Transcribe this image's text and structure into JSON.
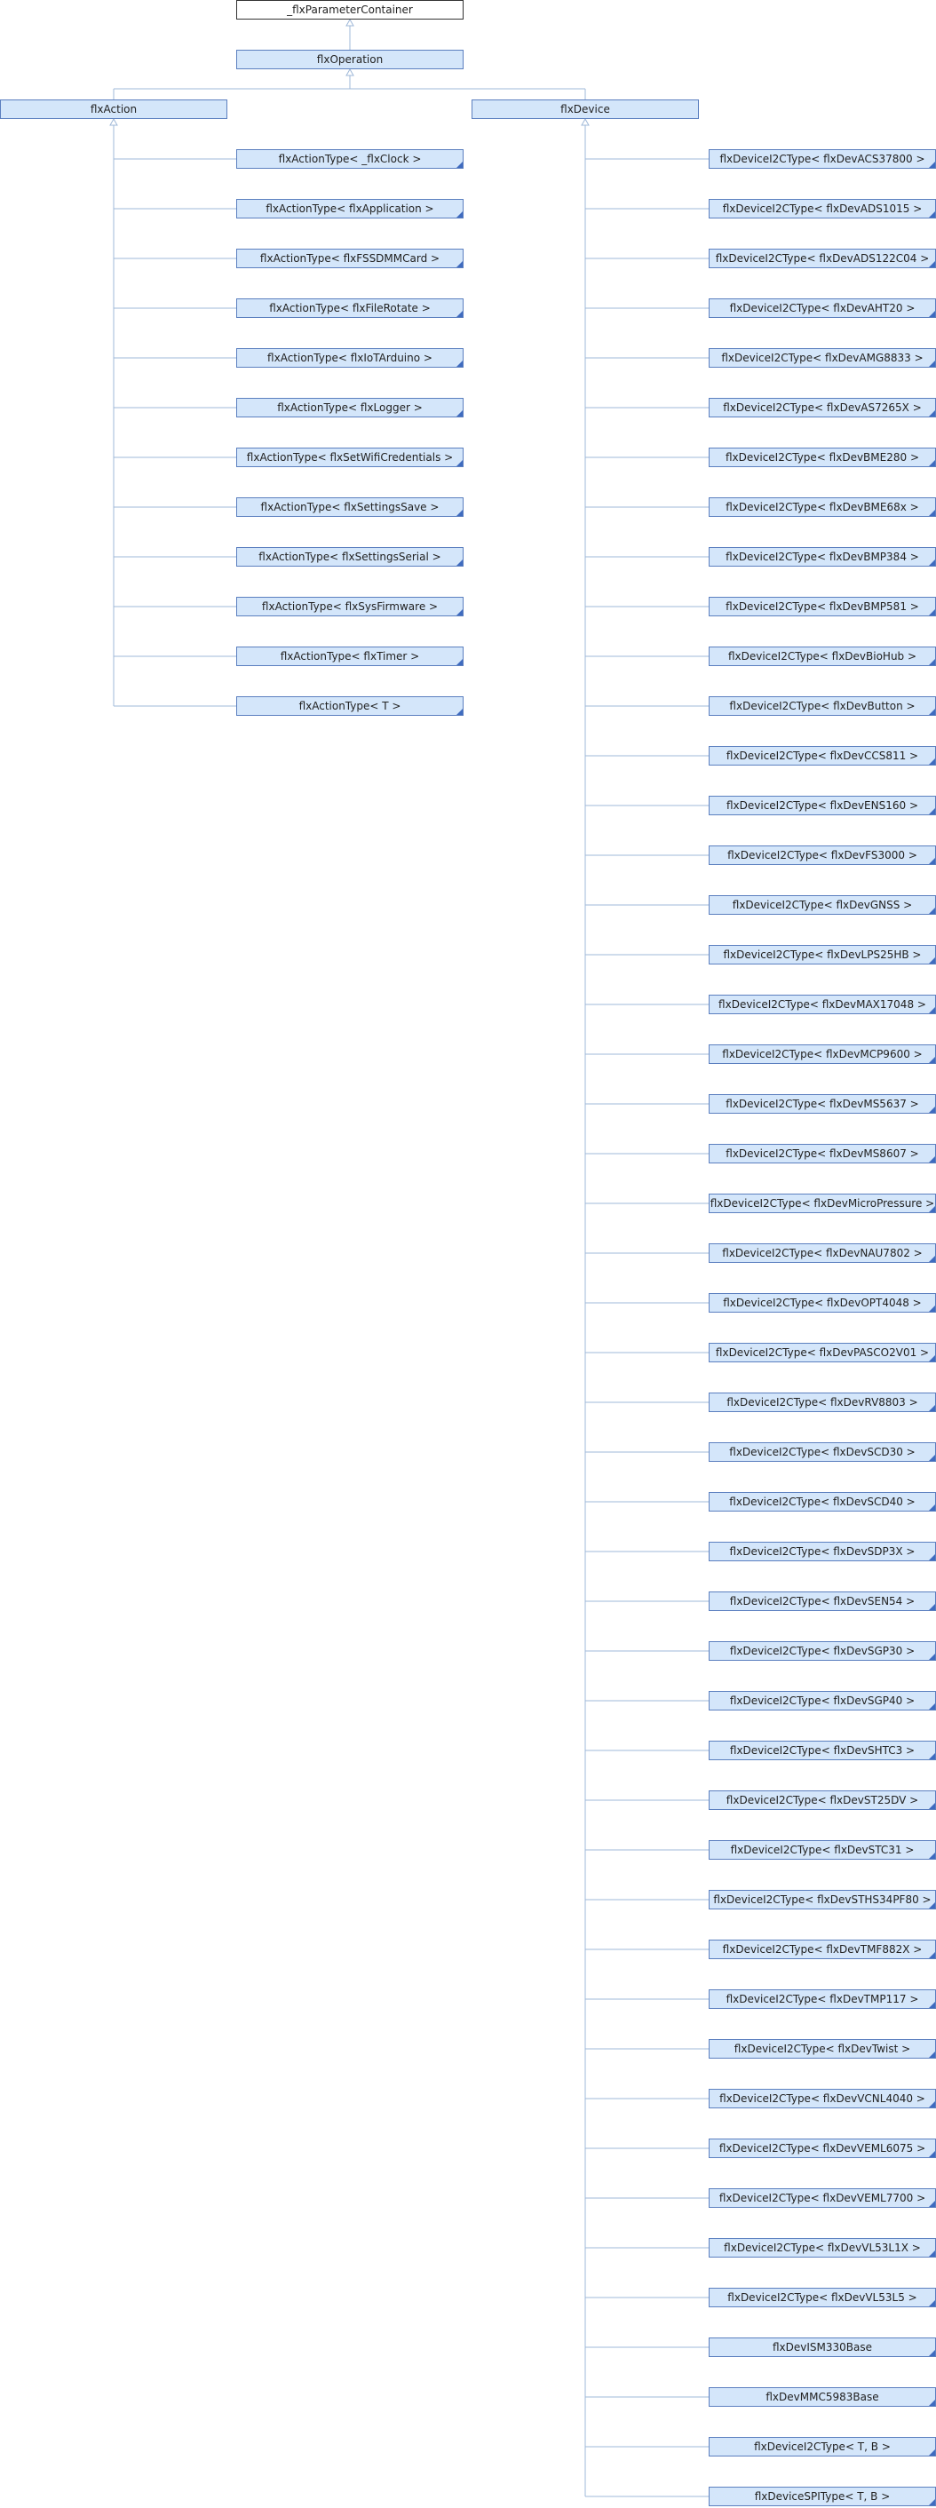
{
  "root": {
    "label": "_flxParameterContainer"
  },
  "operation": {
    "label": "flxOperation"
  },
  "action": {
    "label": "flxAction",
    "children": [
      "flxActionType< _flxClock >",
      "flxActionType< flxApplication >",
      "flxActionType< flxFSSDMMCard >",
      "flxActionType< flxFileRotate >",
      "flxActionType< flxIoTArduino >",
      "flxActionType< flxLogger >",
      "flxActionType< flxSetWifiCredentials >",
      "flxActionType< flxSettingsSave >",
      "flxActionType< flxSettingsSerial >",
      "flxActionType< flxSysFirmware >",
      "flxActionType< flxTimer >",
      "flxActionType< T >"
    ]
  },
  "device": {
    "label": "flxDevice",
    "children": [
      "flxDeviceI2CType< flxDevACS37800 >",
      "flxDeviceI2CType< flxDevADS1015 >",
      "flxDeviceI2CType< flxDevADS122C04 >",
      "flxDeviceI2CType< flxDevAHT20 >",
      "flxDeviceI2CType< flxDevAMG8833 >",
      "flxDeviceI2CType< flxDevAS7265X >",
      "flxDeviceI2CType< flxDevBME280 >",
      "flxDeviceI2CType< flxDevBME68x >",
      "flxDeviceI2CType< flxDevBMP384 >",
      "flxDeviceI2CType< flxDevBMP581 >",
      "flxDeviceI2CType< flxDevBioHub >",
      "flxDeviceI2CType< flxDevButton >",
      "flxDeviceI2CType< flxDevCCS811 >",
      "flxDeviceI2CType< flxDevENS160 >",
      "flxDeviceI2CType< flxDevFS3000 >",
      "flxDeviceI2CType< flxDevGNSS >",
      "flxDeviceI2CType< flxDevLPS25HB >",
      "flxDeviceI2CType< flxDevMAX17048 >",
      "flxDeviceI2CType< flxDevMCP9600 >",
      "flxDeviceI2CType< flxDevMS5637 >",
      "flxDeviceI2CType< flxDevMS8607 >",
      "flxDeviceI2CType< flxDevMicroPressure >",
      "flxDeviceI2CType< flxDevNAU7802 >",
      "flxDeviceI2CType< flxDevOPT4048 >",
      "flxDeviceI2CType< flxDevPASCO2V01 >",
      "flxDeviceI2CType< flxDevRV8803 >",
      "flxDeviceI2CType< flxDevSCD30 >",
      "flxDeviceI2CType< flxDevSCD40 >",
      "flxDeviceI2CType< flxDevSDP3X >",
      "flxDeviceI2CType< flxDevSEN54 >",
      "flxDeviceI2CType< flxDevSGP30 >",
      "flxDeviceI2CType< flxDevSGP40 >",
      "flxDeviceI2CType< flxDevSHTC3 >",
      "flxDeviceI2CType< flxDevST25DV >",
      "flxDeviceI2CType< flxDevSTC31 >",
      "flxDeviceI2CType< flxDevSTHS34PF80 >",
      "flxDeviceI2CType< flxDevTMF882X >",
      "flxDeviceI2CType< flxDevTMP117 >",
      "flxDeviceI2CType< flxDevTwist >",
      "flxDeviceI2CType< flxDevVCNL4040 >",
      "flxDeviceI2CType< flxDevVEML6075 >",
      "flxDeviceI2CType< flxDevVEML7700 >",
      "flxDeviceI2CType< flxDevVL53L1X >",
      "flxDeviceI2CType< flxDevVL53L5 >",
      "flxDevISM330Base",
      "flxDevMMC5983Base",
      "flxDeviceI2CType< T, B >",
      "flxDeviceSPIType< T, B >"
    ]
  },
  "colors": {
    "node_fill": "#d4e6fa",
    "node_border": "#5b7fbf",
    "root_border": "#333333",
    "connector": "#9fb8d8",
    "corner_marker": "#3f6bbf"
  }
}
